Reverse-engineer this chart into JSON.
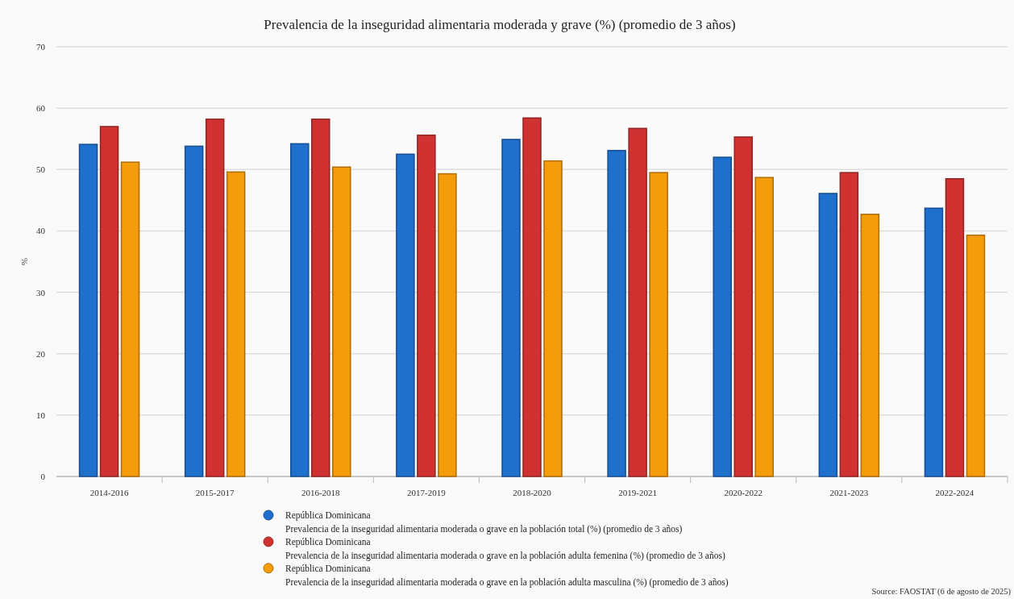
{
  "chart_data": {
    "type": "bar",
    "title": "Prevalencia de la inseguridad alimentaria moderada y grave (%) (promedio de 3 años)",
    "ylabel": "%",
    "categories": [
      "2014-2016",
      "2015-2017",
      "2016-2018",
      "2017-2019",
      "2018-2020",
      "2019-2021",
      "2020-2022",
      "2021-2023",
      "2022-2024"
    ],
    "series": [
      {
        "name": "República Dominicana\nPrevalencia de la inseguridad alimentaria moderada o grave en la población total (%) (promedio de 3 años)",
        "color": "#1f6fcc",
        "values": [
          54.1,
          53.8,
          54.2,
          52.5,
          54.9,
          53.1,
          52.0,
          46.1,
          43.7
        ]
      },
      {
        "name": "República Dominicana\nPrevalencia de la inseguridad alimentaria moderada o grave en la población adulta femenina (%) (promedio de 3 años)",
        "color": "#d03232",
        "values": [
          57.0,
          58.2,
          58.2,
          55.6,
          58.4,
          56.7,
          55.3,
          49.5,
          48.5
        ]
      },
      {
        "name": "República Dominicana\nPrevalencia de la inseguridad alimentaria moderada o grave en la población adulta masculina (%) (promedio de 3 años)",
        "color": "#f59c0a",
        "values": [
          51.2,
          49.6,
          50.4,
          49.3,
          51.4,
          49.5,
          48.7,
          42.7,
          39.3
        ]
      }
    ],
    "ylim": [
      0,
      70
    ],
    "yticks": [
      0,
      10,
      20,
      30,
      40,
      50,
      60,
      70
    ],
    "grid": "y",
    "legend": "bottom",
    "annotations": [
      "Source: FAOSTAT (6 de agosto de 2025)"
    ]
  }
}
